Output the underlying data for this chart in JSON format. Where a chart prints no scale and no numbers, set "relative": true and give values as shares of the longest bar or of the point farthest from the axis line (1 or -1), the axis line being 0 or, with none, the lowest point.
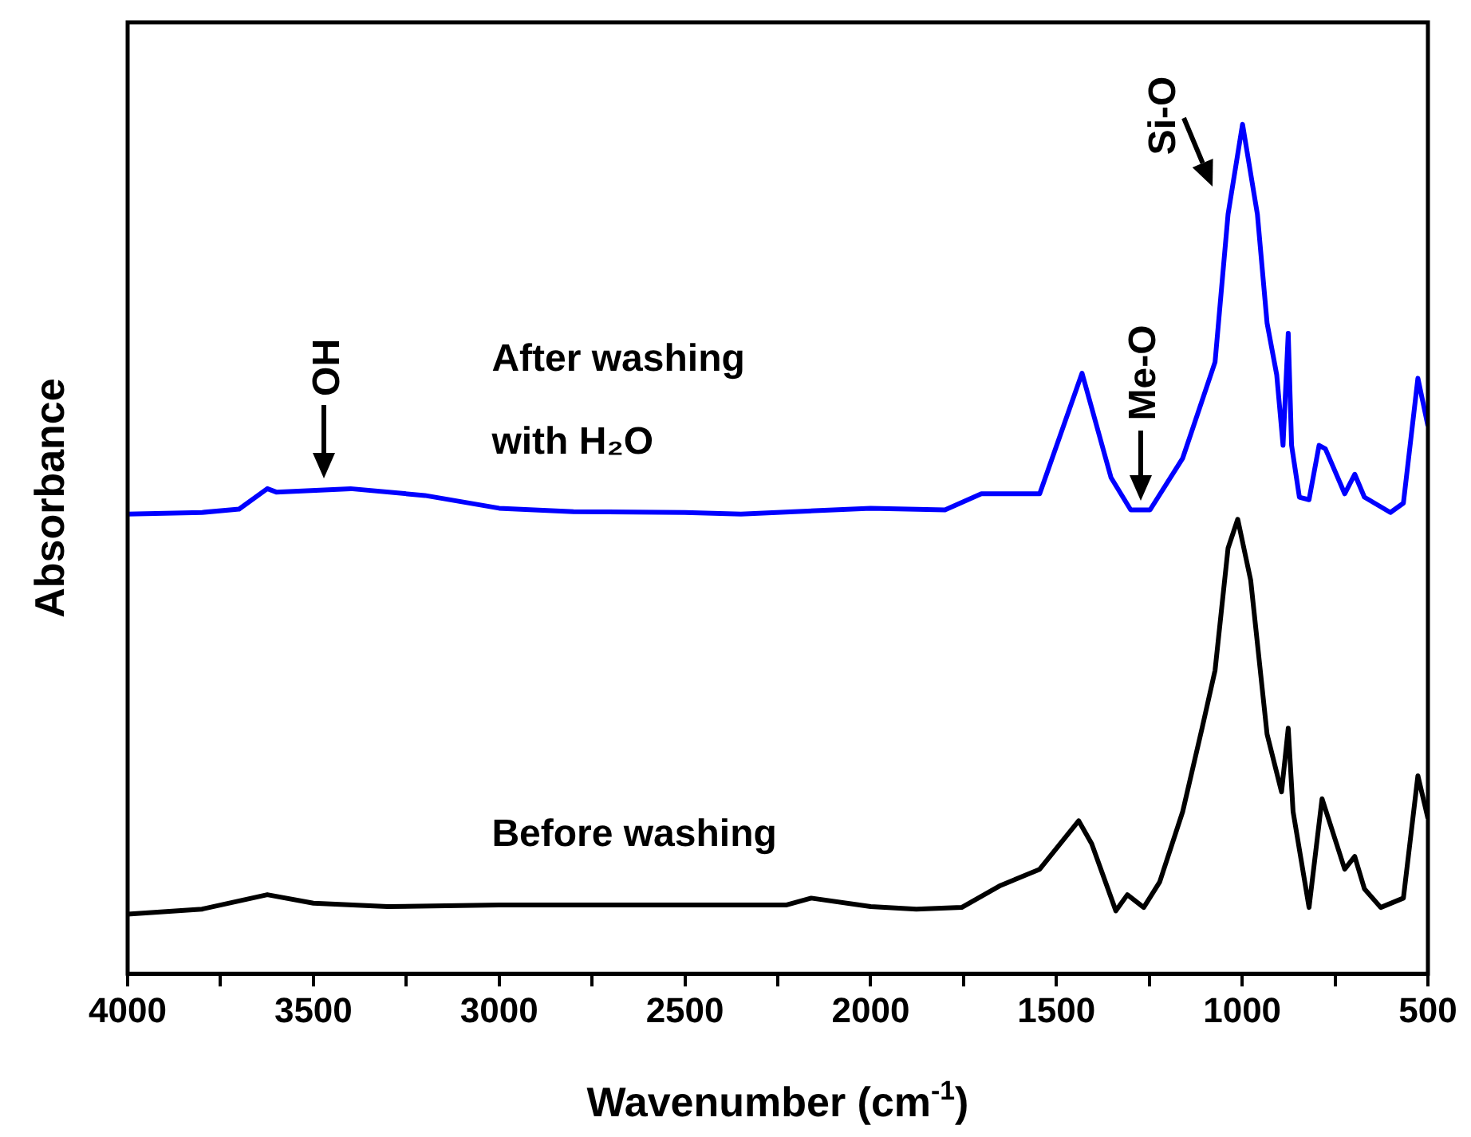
{
  "chart_data": {
    "type": "line",
    "xlabel": "Wavenumber (cm$^{-1}$)",
    "ylabel": "Absorbance",
    "relative": true,
    "marker": "none",
    "legend": false,
    "grid": false,
    "xlim": [
      4000,
      500
    ],
    "xticks": [
      4000,
      {
        "value": 3750,
        "label": null
      },
      3500,
      {
        "value": 3250,
        "label": null
      },
      3000,
      {
        "value": 2750,
        "label": null
      },
      2500,
      {
        "value": 2250,
        "label": null
      },
      2000,
      {
        "value": 1750,
        "label": null
      },
      1500,
      {
        "value": 1250,
        "label": null
      },
      1000,
      {
        "value": 750,
        "label": null
      },
      500
    ],
    "series": [
      {
        "name": "After washing with H₂O",
        "color": "#0000ff",
        "x": [
          4000,
          3800,
          3700,
          3624,
          3600,
          3400,
          3200,
          3000,
          2800,
          2500,
          2349,
          2000,
          1800,
          1702,
          1545,
          1431,
          1353,
          1300,
          1248,
          1160,
          1073,
          1038,
          999,
          959,
          933,
          907,
          890,
          876,
          867,
          846,
          820,
          793,
          776,
          724,
          697,
          671,
          601,
          566,
          527,
          500
        ],
        "values": [
          0.541,
          0.543,
          0.547,
          0.571,
          0.567,
          0.571,
          0.563,
          0.548,
          0.544,
          0.543,
          0.541,
          0.548,
          0.546,
          0.565,
          0.565,
          0.707,
          0.584,
          0.546,
          0.546,
          0.607,
          0.72,
          0.894,
          1.0,
          0.894,
          0.766,
          0.705,
          0.622,
          0.754,
          0.622,
          0.561,
          0.558,
          0.622,
          0.618,
          0.565,
          0.588,
          0.561,
          0.543,
          0.554,
          0.701,
          0.645
        ]
      },
      {
        "name": "Before washing",
        "color": "#000000",
        "x": [
          4000,
          3800,
          3624,
          3500,
          3300,
          3000,
          2500,
          2226,
          2160,
          2000,
          1877,
          1755,
          1650,
          1545,
          1440,
          1405,
          1340,
          1309,
          1265,
          1222,
          1160,
          1108,
          1073,
          1038,
          1012,
          977,
          933,
          894,
          876,
          863,
          820,
          785,
          724,
          697,
          671,
          627,
          566,
          527,
          500
        ],
        "values": [
          0.07,
          0.076,
          0.093,
          0.083,
          0.079,
          0.081,
          0.081,
          0.081,
          0.089,
          0.079,
          0.076,
          0.078,
          0.104,
          0.123,
          0.18,
          0.153,
          0.074,
          0.093,
          0.078,
          0.108,
          0.191,
          0.289,
          0.357,
          0.501,
          0.535,
          0.463,
          0.282,
          0.214,
          0.289,
          0.191,
          0.078,
          0.206,
          0.123,
          0.138,
          0.1,
          0.078,
          0.089,
          0.233,
          0.183
        ]
      }
    ],
    "annotations": [
      {
        "text": "OH",
        "x": 3470,
        "y": 0.571
      },
      {
        "text": "Me-O",
        "x": 1274,
        "y": 0.546
      },
      {
        "text": "Si-O",
        "x": 1040,
        "y": 0.9
      }
    ]
  }
}
